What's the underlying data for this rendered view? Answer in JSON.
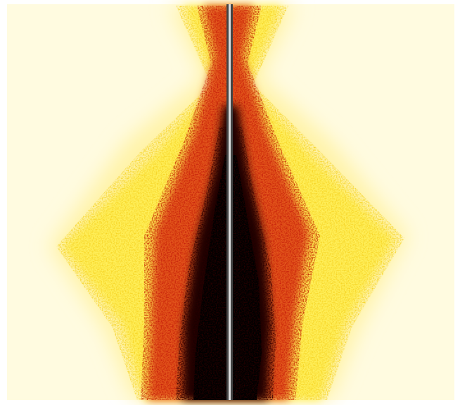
{
  "image": {
    "subject": "heatmap-intensity-pattern",
    "colors": {
      "background": "#ffffff",
      "pale": "#fffbe0",
      "yellow": "#ffef5a",
      "orange": "#f08a1a",
      "red": "#c41a0a",
      "dark": "#000000",
      "divider": "#444444",
      "divider_highlight": "#dddddd"
    }
  }
}
